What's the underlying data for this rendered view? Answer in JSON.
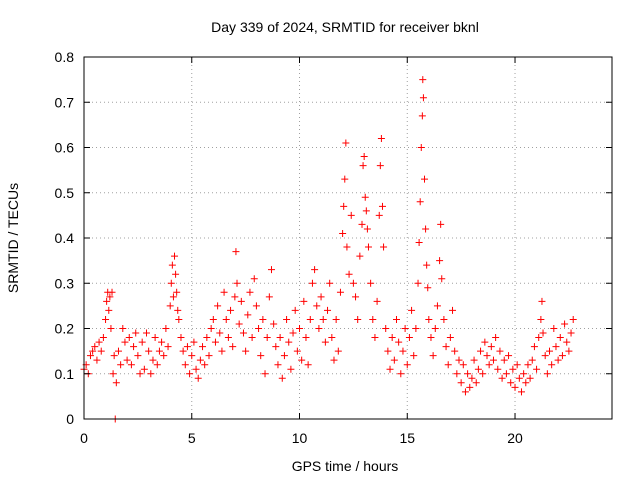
{
  "chart_data": {
    "type": "scatter",
    "title": "Day 339 of 2024, SRMTID for receiver bknl",
    "xlabel": "GPS time / hours",
    "ylabel": "SRMTID / TECUs",
    "xlim": [
      0,
      24.5
    ],
    "ylim": [
      0,
      0.8
    ],
    "xticks": [
      0,
      5,
      10,
      15,
      20
    ],
    "xtick_labels": [
      "0",
      "5",
      "10",
      "15",
      "20"
    ],
    "yticks": [
      0,
      0.1,
      0.2,
      0.3,
      0.4,
      0.5,
      0.6,
      0.7,
      0.8
    ],
    "ytick_labels": [
      "0",
      "0.1",
      "0.2",
      "0.3",
      "0.4",
      "0.5",
      "0.6",
      "0.7",
      "0.8"
    ],
    "grid": true,
    "marker": "plus",
    "color": "#ff0000",
    "series": [
      {
        "name": "SRMTID",
        "points": [
          [
            0.0,
            0.11
          ],
          [
            0.1,
            0.12
          ],
          [
            0.2,
            0.1
          ],
          [
            0.3,
            0.14
          ],
          [
            0.4,
            0.15
          ],
          [
            0.5,
            0.16
          ],
          [
            0.6,
            0.13
          ],
          [
            0.7,
            0.17
          ],
          [
            0.8,
            0.15
          ],
          [
            0.9,
            0.18
          ],
          [
            1.0,
            0.22
          ],
          [
            1.05,
            0.26
          ],
          [
            1.1,
            0.28
          ],
          [
            1.15,
            0.24
          ],
          [
            1.2,
            0.27
          ],
          [
            1.25,
            0.2
          ],
          [
            1.3,
            0.28
          ],
          [
            1.35,
            0.1
          ],
          [
            1.4,
            0.14
          ],
          [
            1.45,
            0.0
          ],
          [
            1.5,
            0.08
          ],
          [
            1.6,
            0.15
          ],
          [
            1.7,
            0.12
          ],
          [
            1.8,
            0.2
          ],
          [
            1.9,
            0.17
          ],
          [
            2.0,
            0.13
          ],
          [
            2.1,
            0.18
          ],
          [
            2.2,
            0.12
          ],
          [
            2.3,
            0.16
          ],
          [
            2.4,
            0.19
          ],
          [
            2.5,
            0.14
          ],
          [
            2.6,
            0.1
          ],
          [
            2.7,
            0.17
          ],
          [
            2.8,
            0.11
          ],
          [
            2.9,
            0.19
          ],
          [
            3.0,
            0.15
          ],
          [
            3.1,
            0.1
          ],
          [
            3.2,
            0.13
          ],
          [
            3.3,
            0.18
          ],
          [
            3.4,
            0.12
          ],
          [
            3.5,
            0.15
          ],
          [
            3.6,
            0.17
          ],
          [
            3.7,
            0.14
          ],
          [
            3.8,
            0.2
          ],
          [
            3.9,
            0.16
          ],
          [
            4.0,
            0.25
          ],
          [
            4.05,
            0.3
          ],
          [
            4.1,
            0.34
          ],
          [
            4.15,
            0.27
          ],
          [
            4.2,
            0.36
          ],
          [
            4.25,
            0.32
          ],
          [
            4.3,
            0.28
          ],
          [
            4.35,
            0.24
          ],
          [
            4.4,
            0.22
          ],
          [
            4.5,
            0.18
          ],
          [
            4.6,
            0.15
          ],
          [
            4.7,
            0.12
          ],
          [
            4.8,
            0.16
          ],
          [
            4.9,
            0.1
          ],
          [
            5.0,
            0.14
          ],
          [
            5.1,
            0.17
          ],
          [
            5.2,
            0.11
          ],
          [
            5.3,
            0.09
          ],
          [
            5.4,
            0.13
          ],
          [
            5.5,
            0.16
          ],
          [
            5.6,
            0.12
          ],
          [
            5.7,
            0.18
          ],
          [
            5.8,
            0.14
          ],
          [
            5.9,
            0.2
          ],
          [
            6.0,
            0.22
          ],
          [
            6.1,
            0.17
          ],
          [
            6.2,
            0.25
          ],
          [
            6.3,
            0.19
          ],
          [
            6.4,
            0.15
          ],
          [
            6.5,
            0.28
          ],
          [
            6.6,
            0.22
          ],
          [
            6.7,
            0.18
          ],
          [
            6.8,
            0.24
          ],
          [
            6.9,
            0.16
          ],
          [
            7.0,
            0.27
          ],
          [
            7.05,
            0.37
          ],
          [
            7.1,
            0.3
          ],
          [
            7.2,
            0.21
          ],
          [
            7.3,
            0.26
          ],
          [
            7.4,
            0.19
          ],
          [
            7.5,
            0.15
          ],
          [
            7.6,
            0.23
          ],
          [
            7.7,
            0.28
          ],
          [
            7.8,
            0.18
          ],
          [
            7.9,
            0.31
          ],
          [
            8.0,
            0.25
          ],
          [
            8.1,
            0.2
          ],
          [
            8.2,
            0.14
          ],
          [
            8.3,
            0.22
          ],
          [
            8.4,
            0.1
          ],
          [
            8.5,
            0.18
          ],
          [
            8.6,
            0.27
          ],
          [
            8.7,
            0.33
          ],
          [
            8.8,
            0.21
          ],
          [
            8.9,
            0.16
          ],
          [
            9.0,
            0.12
          ],
          [
            9.1,
            0.18
          ],
          [
            9.2,
            0.09
          ],
          [
            9.3,
            0.14
          ],
          [
            9.4,
            0.22
          ],
          [
            9.5,
            0.17
          ],
          [
            9.6,
            0.11
          ],
          [
            9.7,
            0.19
          ],
          [
            9.8,
            0.24
          ],
          [
            9.9,
            0.15
          ],
          [
            10.0,
            0.2
          ],
          [
            10.1,
            0.13
          ],
          [
            10.2,
            0.26
          ],
          [
            10.3,
            0.18
          ],
          [
            10.4,
            0.12
          ],
          [
            10.5,
            0.22
          ],
          [
            10.6,
            0.3
          ],
          [
            10.7,
            0.33
          ],
          [
            10.8,
            0.25
          ],
          [
            10.9,
            0.2
          ],
          [
            11.0,
            0.27
          ],
          [
            11.1,
            0.22
          ],
          [
            11.2,
            0.17
          ],
          [
            11.3,
            0.24
          ],
          [
            11.4,
            0.3
          ],
          [
            11.5,
            0.18
          ],
          [
            11.6,
            0.13
          ],
          [
            11.7,
            0.22
          ],
          [
            11.8,
            0.15
          ],
          [
            11.9,
            0.28
          ],
          [
            12.0,
            0.41
          ],
          [
            12.05,
            0.47
          ],
          [
            12.1,
            0.53
          ],
          [
            12.15,
            0.61
          ],
          [
            12.2,
            0.38
          ],
          [
            12.3,
            0.32
          ],
          [
            12.4,
            0.45
          ],
          [
            12.5,
            0.3
          ],
          [
            12.6,
            0.27
          ],
          [
            12.7,
            0.22
          ],
          [
            12.8,
            0.36
          ],
          [
            12.9,
            0.43
          ],
          [
            12.95,
            0.56
          ],
          [
            13.0,
            0.58
          ],
          [
            13.05,
            0.49
          ],
          [
            13.1,
            0.46
          ],
          [
            13.15,
            0.42
          ],
          [
            13.2,
            0.38
          ],
          [
            13.3,
            0.3
          ],
          [
            13.4,
            0.22
          ],
          [
            13.5,
            0.18
          ],
          [
            13.6,
            0.26
          ],
          [
            13.7,
            0.45
          ],
          [
            13.75,
            0.56
          ],
          [
            13.8,
            0.62
          ],
          [
            13.85,
            0.47
          ],
          [
            13.9,
            0.38
          ],
          [
            14.0,
            0.2
          ],
          [
            14.1,
            0.15
          ],
          [
            14.2,
            0.11
          ],
          [
            14.3,
            0.18
          ],
          [
            14.4,
            0.13
          ],
          [
            14.5,
            0.22
          ],
          [
            14.6,
            0.17
          ],
          [
            14.7,
            0.1
          ],
          [
            14.8,
            0.15
          ],
          [
            14.9,
            0.2
          ],
          [
            15.0,
            0.12
          ],
          [
            15.1,
            0.18
          ],
          [
            15.2,
            0.24
          ],
          [
            15.3,
            0.14
          ],
          [
            15.4,
            0.2
          ],
          [
            15.5,
            0.3
          ],
          [
            15.55,
            0.39
          ],
          [
            15.6,
            0.48
          ],
          [
            15.65,
            0.6
          ],
          [
            15.7,
            0.67
          ],
          [
            15.72,
            0.75
          ],
          [
            15.75,
            0.71
          ],
          [
            15.8,
            0.53
          ],
          [
            15.85,
            0.42
          ],
          [
            15.9,
            0.34
          ],
          [
            15.95,
            0.29
          ],
          [
            16.0,
            0.22
          ],
          [
            16.1,
            0.18
          ],
          [
            16.2,
            0.14
          ],
          [
            16.3,
            0.2
          ],
          [
            16.4,
            0.25
          ],
          [
            16.5,
            0.35
          ],
          [
            16.55,
            0.43
          ],
          [
            16.6,
            0.31
          ],
          [
            16.7,
            0.22
          ],
          [
            16.8,
            0.16
          ],
          [
            16.9,
            0.12
          ],
          [
            17.0,
            0.18
          ],
          [
            17.1,
            0.24
          ],
          [
            17.2,
            0.15
          ],
          [
            17.3,
            0.1
          ],
          [
            17.4,
            0.13
          ],
          [
            17.5,
            0.08
          ],
          [
            17.6,
            0.12
          ],
          [
            17.7,
            0.06
          ],
          [
            17.8,
            0.1
          ],
          [
            17.9,
            0.07
          ],
          [
            18.0,
            0.09
          ],
          [
            18.1,
            0.13
          ],
          [
            18.2,
            0.08
          ],
          [
            18.3,
            0.11
          ],
          [
            18.4,
            0.15
          ],
          [
            18.5,
            0.1
          ],
          [
            18.6,
            0.17
          ],
          [
            18.7,
            0.14
          ],
          [
            18.8,
            0.12
          ],
          [
            18.9,
            0.16
          ],
          [
            19.0,
            0.13
          ],
          [
            19.1,
            0.18
          ],
          [
            19.2,
            0.11
          ],
          [
            19.3,
            0.15
          ],
          [
            19.4,
            0.09
          ],
          [
            19.5,
            0.13
          ],
          [
            19.6,
            0.1
          ],
          [
            19.7,
            0.14
          ],
          [
            19.8,
            0.08
          ],
          [
            19.9,
            0.11
          ],
          [
            20.0,
            0.07
          ],
          [
            20.1,
            0.12
          ],
          [
            20.2,
            0.09
          ],
          [
            20.3,
            0.06
          ],
          [
            20.4,
            0.1
          ],
          [
            20.5,
            0.08
          ],
          [
            20.6,
            0.12
          ],
          [
            20.7,
            0.09
          ],
          [
            20.8,
            0.13
          ],
          [
            20.9,
            0.16
          ],
          [
            21.0,
            0.11
          ],
          [
            21.1,
            0.18
          ],
          [
            21.2,
            0.22
          ],
          [
            21.25,
            0.26
          ],
          [
            21.3,
            0.19
          ],
          [
            21.4,
            0.14
          ],
          [
            21.5,
            0.1
          ],
          [
            21.6,
            0.15
          ],
          [
            21.7,
            0.12
          ],
          [
            21.8,
            0.2
          ],
          [
            21.9,
            0.16
          ],
          [
            22.0,
            0.13
          ],
          [
            22.1,
            0.18
          ],
          [
            22.2,
            0.14
          ],
          [
            22.3,
            0.21
          ],
          [
            22.4,
            0.17
          ],
          [
            22.5,
            0.15
          ],
          [
            22.6,
            0.19
          ],
          [
            22.7,
            0.22
          ]
        ]
      }
    ]
  }
}
